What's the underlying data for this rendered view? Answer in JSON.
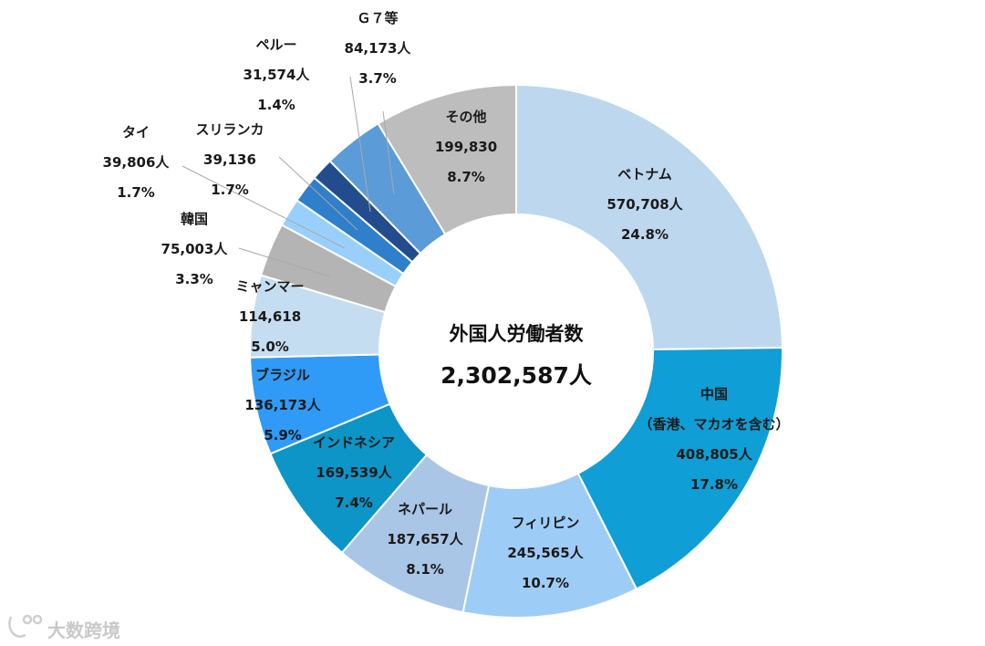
{
  "chart_data": {
    "type": "pie",
    "center_title": "外国人労働者数",
    "center_value": "2,302,587人",
    "slices": [
      {
        "label": "ベトナム",
        "sublabel": "",
        "value": 570708,
        "value_text": "570,708人",
        "percent_text": "24.8%",
        "color": "#bdd7ee"
      },
      {
        "label": "中国",
        "sublabel": "（香港、マカオを含む）",
        "value": 408805,
        "value_text": "408,805人",
        "percent_text": "17.8%",
        "color": "#0f9ed5"
      },
      {
        "label": "フィリピン",
        "sublabel": "",
        "value": 245565,
        "value_text": "245,565人",
        "percent_text": "10.7%",
        "color": "#9dcdf7"
      },
      {
        "label": "ネパール",
        "sublabel": "",
        "value": 187657,
        "value_text": "187,657人",
        "percent_text": "8.1%",
        "color": "#a9c6e6"
      },
      {
        "label": "インドネシア",
        "sublabel": "",
        "value": 169539,
        "value_text": "169,539人",
        "percent_text": "7.4%",
        "color": "#0c95c6"
      },
      {
        "label": "ブラジル",
        "sublabel": "",
        "value": 136173,
        "value_text": "136,173人",
        "percent_text": "5.9%",
        "color": "#2f9bf6"
      },
      {
        "label": "ミャンマー",
        "sublabel": "",
        "value": 114618,
        "value_text": "114,618",
        "percent_text": "5.0%",
        "color": "#c5ddf1"
      },
      {
        "label": "韓国",
        "sublabel": "",
        "value": 75003,
        "value_text": "75,003人",
        "percent_text": "3.3%",
        "color": "#b4b4b4"
      },
      {
        "label": "タイ",
        "sublabel": "",
        "value": 39806,
        "value_text": "39,806人",
        "percent_text": "1.7%",
        "color": "#99d0fb"
      },
      {
        "label": "スリランカ",
        "sublabel": "",
        "value": 39136,
        "value_text": "39,136",
        "percent_text": "1.7%",
        "color": "#2f7fca"
      },
      {
        "label": "ペルー",
        "sublabel": "",
        "value": 31574,
        "value_text": "31,574人",
        "percent_text": "1.4%",
        "color": "#224c8e"
      },
      {
        "label": "Ｇ７等",
        "sublabel": "",
        "value": 84173,
        "value_text": "84,173人",
        "percent_text": "3.7%",
        "color": "#5b9bd8"
      },
      {
        "label": "その他",
        "sublabel": "",
        "value": 199830,
        "value_text": "199,830",
        "percent_text": "8.7%",
        "color": "#bdbdbd"
      }
    ]
  },
  "watermark": "大数跨境"
}
